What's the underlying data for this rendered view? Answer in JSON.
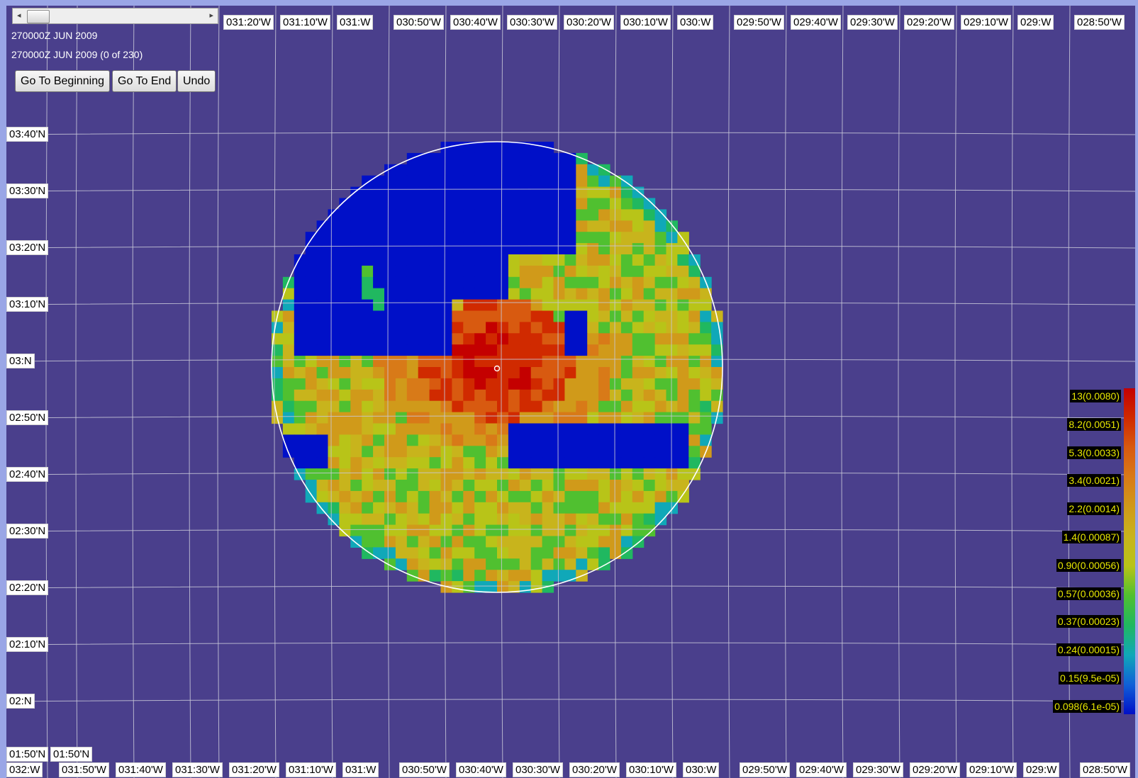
{
  "toolbar": {
    "timestamp": "270000Z JUN 2009",
    "frame_status": "270000Z JUN 2009 (0 of 230)",
    "go_to_beginning_label": "Go To Beginning",
    "go_to_end_label": "Go To End",
    "undo_label": "Undo",
    "slider_left_icon": "scroll-left-arrow-icon",
    "slider_right_icon": "scroll-right-arrow-icon"
  },
  "map": {
    "background_color": "#4a3f8c",
    "grid_color": "#c8c8d8",
    "ring_color": "#ffffff",
    "top_lon_labels": [
      "031:20'W",
      "031:10'W",
      "031:W",
      "030:50'W",
      "030:40'W",
      "030:30'W",
      "030:20'W",
      "030:10'W",
      "030:W",
      "029:50'W",
      "029:40'W",
      "029:30'W",
      "029:20'W",
      "029:10'W",
      "029:W",
      "028:50'W"
    ],
    "bottom_lon_labels": [
      "032:W",
      "031:50'W",
      "031:40'W",
      "031:30'W",
      "031:20'W",
      "031:10'W",
      "031:W",
      "030:50'W",
      "030:40'W",
      "030:30'W",
      "030:20'W",
      "030:10'W",
      "030:W",
      "029:50'W",
      "029:40'W",
      "029:30'W",
      "029:20'W",
      "029:10'W",
      "029:W",
      "028:50'W"
    ],
    "lat_labels": [
      "03:40'N",
      "03:30'N",
      "03:20'N",
      "03:10'N",
      "03:N",
      "02:50'N",
      "02:40'N",
      "02:30'N",
      "02:20'N",
      "02:10'N",
      "02:N"
    ],
    "bottom_lat_labels": [
      "01:50'N",
      "01:50'N"
    ],
    "center_marker_icon": "center-marker-icon"
  },
  "legend": {
    "entries": [
      "13(0.0080)",
      "8.2(0.0051)",
      "5.3(0.0033)",
      "3.4(0.0021)",
      "2.2(0.0014)",
      "1.4(0.00087)",
      "0.90(0.00056)",
      "0.57(0.00036)",
      "0.37(0.00023)",
      "0.24(0.00015)",
      "0.15(9.5e-05)",
      "0.098(6.1e-05)"
    ],
    "colors": [
      "#c40000",
      "#d02a00",
      "#d85a10",
      "#d87a18",
      "#d09a1a",
      "#c8b41c",
      "#b8c418",
      "#50c030",
      "#20b860",
      "#10a8b8",
      "#1060d8",
      "#0010c8"
    ]
  }
}
